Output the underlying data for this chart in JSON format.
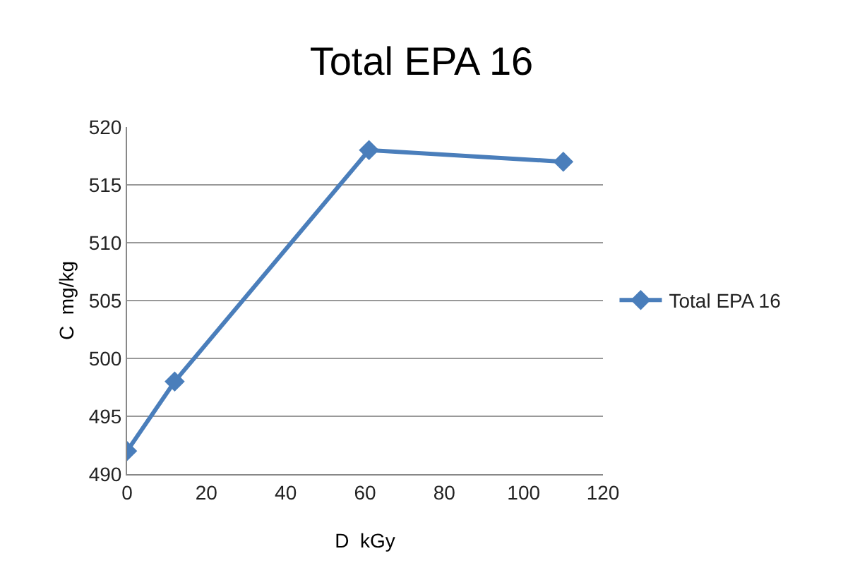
{
  "chart_data": {
    "type": "line",
    "title": "Total EPA 16",
    "xlabel": "D  kGy",
    "ylabel": "C  mg/kg",
    "x": [
      0,
      12,
      61,
      110
    ],
    "series": [
      {
        "name": "Total EPA 16",
        "color": "#4a7ebb",
        "values": [
          492,
          498,
          518,
          517
        ]
      }
    ],
    "xlim": [
      0,
      120
    ],
    "xticks": [
      0,
      20,
      40,
      60,
      80,
      100,
      120
    ],
    "ylim": [
      490,
      520
    ],
    "yticks": [
      490,
      495,
      500,
      505,
      510,
      515,
      520
    ],
    "grid": "y",
    "legend": "right",
    "marker": "diamond",
    "line_style": "solid"
  }
}
